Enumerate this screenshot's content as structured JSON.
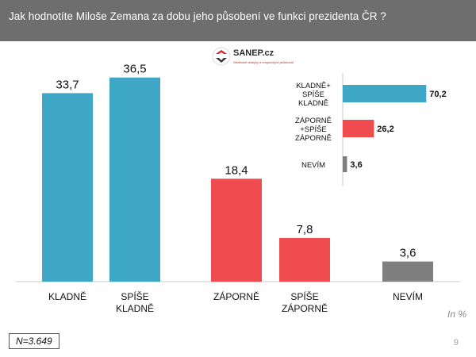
{
  "header": {
    "question": "Jak hodnotíte Miloše Zemana  za dobu jeho působení ve funkci prezidenta ČR ?"
  },
  "logo": {
    "name": "SANEP.cz",
    "tagline": "Nezávislé analýzy a empirických průzkumů"
  },
  "chart_data": [
    {
      "type": "bar",
      "categories": [
        "KLADNĚ",
        "SPÍŠE KLADNĚ",
        "ZÁPORNĚ",
        "SPÍŠE ZÁPORNĚ",
        "NEVÍM"
      ],
      "tick_labels": [
        [
          "KLADNĚ"
        ],
        [
          "SPÍŠE",
          "KLADNĚ"
        ],
        [
          "ZÁPORNĚ"
        ],
        [
          "SPÍŠE",
          "ZÁPORNĚ"
        ],
        [
          "NEVÍM"
        ]
      ],
      "values": [
        33.7,
        36.5,
        18.4,
        7.8,
        3.6
      ],
      "value_labels": [
        "33,7",
        "36,5",
        "18,4",
        "7,8",
        "3,6"
      ],
      "colors": [
        "#3ea7c5",
        "#3ea7c5",
        "#f04b4f",
        "#f04b4f",
        "#7f7f7f"
      ],
      "ylim": [
        0,
        40
      ]
    },
    {
      "type": "bar",
      "orientation": "horizontal",
      "categories": [
        "KLADNĚ+ SPÍŠE KLADNĚ",
        "ZÁPORNĚ +SPÍŠE ZÁPORNĚ",
        "NEVÍM"
      ],
      "tick_labels": [
        [
          "KLADNĚ+",
          "SPÍŠE",
          "KLADNĚ"
        ],
        [
          "ZÁPORNĚ",
          "+SPÍŠE",
          "ZÁPORNĚ"
        ],
        [
          "NEVÍM"
        ]
      ],
      "values": [
        70.2,
        26.2,
        3.6
      ],
      "value_labels": [
        "70,2",
        "26,2",
        "3,6"
      ],
      "colors": [
        "#3ea7c5",
        "#f04b4f",
        "#7f7f7f"
      ],
      "xlim": [
        0,
        80
      ]
    }
  ],
  "unit_note": "In %",
  "sample_size": "N=3.649",
  "page_number": "9"
}
